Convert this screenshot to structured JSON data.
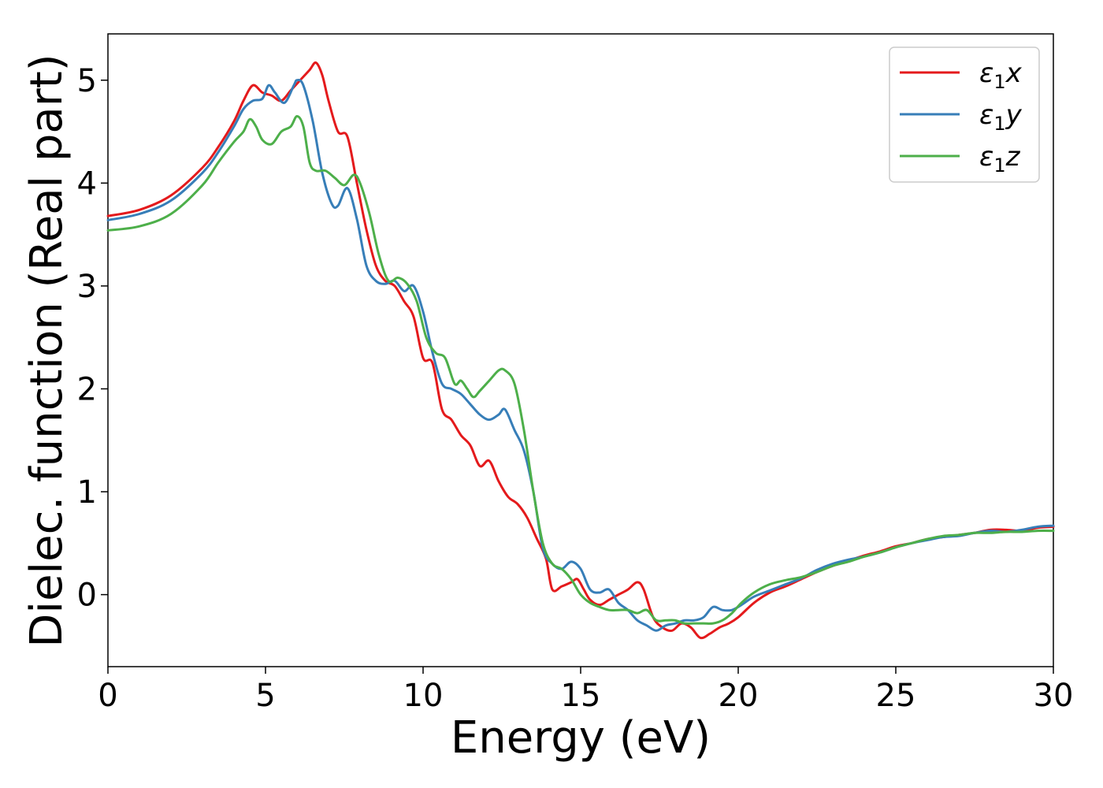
{
  "chart_data": {
    "type": "line",
    "title": "",
    "xlabel": "Energy (eV)",
    "ylabel": "Dielec. function (Real part)",
    "xlim": [
      0,
      30
    ],
    "ylim": [
      -0.7,
      5.45
    ],
    "xticks": [
      0,
      5,
      10,
      15,
      20,
      25,
      30
    ],
    "yticks": [
      0,
      1,
      2,
      3,
      4,
      5
    ],
    "grid": false,
    "legend_position": "top-right",
    "series": [
      {
        "name": "ε1x",
        "legend_base": "ε",
        "legend_sub": "1",
        "legend_var": "x",
        "color": "#e41a1c",
        "x": [
          0,
          1,
          2,
          3,
          3.5,
          4,
          4.3,
          4.6,
          4.9,
          5.2,
          5.5,
          5.8,
          6.1,
          6.4,
          6.6,
          6.8,
          7.0,
          7.3,
          7.6,
          7.9,
          8.2,
          8.5,
          8.8,
          9.1,
          9.4,
          9.7,
          10.0,
          10.3,
          10.6,
          10.9,
          11.2,
          11.5,
          11.8,
          12.1,
          12.4,
          12.7,
          13.0,
          13.3,
          13.6,
          13.9,
          14.1,
          14.4,
          14.7,
          14.9,
          15.1,
          15.3,
          15.6,
          15.9,
          16.2,
          16.5,
          16.8,
          17.0,
          17.3,
          17.6,
          17.9,
          18.2,
          18.5,
          18.8,
          19.1,
          19.4,
          19.7,
          20.0,
          20.5,
          21,
          21.5,
          22,
          22.5,
          23,
          23.5,
          24,
          24.5,
          25,
          25.5,
          26,
          26.5,
          27,
          27.5,
          28,
          28.5,
          29,
          29.5,
          30
        ],
        "y": [
          3.68,
          3.74,
          3.88,
          4.15,
          4.35,
          4.6,
          4.8,
          4.95,
          4.88,
          4.85,
          4.8,
          4.9,
          5.0,
          5.1,
          5.17,
          5.05,
          4.8,
          4.5,
          4.45,
          4.0,
          3.55,
          3.2,
          3.05,
          3.0,
          2.85,
          2.7,
          2.3,
          2.25,
          1.8,
          1.7,
          1.55,
          1.45,
          1.25,
          1.3,
          1.1,
          0.95,
          0.88,
          0.75,
          0.55,
          0.35,
          0.05,
          0.08,
          0.12,
          0.15,
          0.05,
          -0.05,
          -0.1,
          -0.05,
          0.0,
          0.05,
          0.12,
          0.05,
          -0.22,
          -0.32,
          -0.35,
          -0.28,
          -0.32,
          -0.42,
          -0.38,
          -0.32,
          -0.28,
          -0.22,
          -0.08,
          0.02,
          0.08,
          0.15,
          0.22,
          0.28,
          0.33,
          0.38,
          0.42,
          0.47,
          0.5,
          0.54,
          0.56,
          0.58,
          0.6,
          0.63,
          0.63,
          0.62,
          0.65,
          0.66
        ]
      },
      {
        "name": "ε1y",
        "legend_base": "ε",
        "legend_sub": "1",
        "legend_var": "y",
        "color": "#377eb8",
        "x": [
          0,
          1,
          2,
          3,
          3.5,
          4,
          4.3,
          4.6,
          4.9,
          5.1,
          5.3,
          5.6,
          5.9,
          6.0,
          6.2,
          6.5,
          6.8,
          7.1,
          7.3,
          7.6,
          7.9,
          8.2,
          8.5,
          8.8,
          9.1,
          9.4,
          9.7,
          10.0,
          10.3,
          10.6,
          10.9,
          11.2,
          11.5,
          11.8,
          12.1,
          12.4,
          12.6,
          12.9,
          13.2,
          13.5,
          13.8,
          14.1,
          14.4,
          14.7,
          15.0,
          15.3,
          15.6,
          15.9,
          16.2,
          16.5,
          16.8,
          17.1,
          17.4,
          17.7,
          18.0,
          18.3,
          18.6,
          18.9,
          19.2,
          19.5,
          19.8,
          20.1,
          20.5,
          21,
          21.5,
          22,
          22.5,
          23,
          23.5,
          24,
          24.5,
          25,
          25.5,
          26,
          26.5,
          27,
          27.5,
          28,
          28.5,
          29,
          29.5,
          30
        ],
        "y": [
          3.64,
          3.7,
          3.83,
          4.1,
          4.3,
          4.55,
          4.72,
          4.8,
          4.82,
          4.95,
          4.88,
          4.78,
          4.95,
          5.0,
          4.95,
          4.6,
          4.1,
          3.8,
          3.78,
          3.95,
          3.65,
          3.2,
          3.05,
          3.02,
          3.05,
          2.95,
          3.0,
          2.75,
          2.35,
          2.05,
          2.0,
          1.95,
          1.85,
          1.75,
          1.7,
          1.75,
          1.8,
          1.6,
          1.4,
          1.0,
          0.45,
          0.3,
          0.25,
          0.32,
          0.25,
          0.05,
          0.02,
          0.05,
          -0.08,
          -0.15,
          -0.25,
          -0.3,
          -0.35,
          -0.3,
          -0.28,
          -0.25,
          -0.25,
          -0.22,
          -0.12,
          -0.15,
          -0.15,
          -0.1,
          -0.02,
          0.04,
          0.1,
          0.16,
          0.24,
          0.3,
          0.34,
          0.37,
          0.41,
          0.46,
          0.5,
          0.53,
          0.56,
          0.57,
          0.6,
          0.62,
          0.61,
          0.63,
          0.66,
          0.67
        ]
      },
      {
        "name": "ε1z",
        "legend_base": "ε",
        "legend_sub": "1",
        "legend_var": "z",
        "color": "#4daf4a",
        "x": [
          0,
          1,
          2,
          3,
          3.5,
          4,
          4.3,
          4.5,
          4.7,
          4.9,
          5.2,
          5.5,
          5.8,
          6.0,
          6.2,
          6.4,
          6.6,
          6.9,
          7.2,
          7.5,
          7.8,
          8.0,
          8.3,
          8.6,
          8.9,
          9.2,
          9.5,
          9.8,
          10.1,
          10.4,
          10.7,
          11.0,
          11.2,
          11.4,
          11.6,
          11.8,
          12.1,
          12.4,
          12.6,
          12.9,
          13.2,
          13.5,
          13.8,
          14.1,
          14.4,
          14.7,
          15.0,
          15.3,
          15.6,
          15.9,
          16.2,
          16.5,
          16.8,
          17.1,
          17.4,
          17.7,
          18.0,
          18.3,
          18.6,
          18.9,
          19.2,
          19.5,
          19.8,
          20.1,
          20.5,
          21,
          21.5,
          22,
          22.5,
          23,
          23.5,
          24,
          24.5,
          25,
          25.5,
          26,
          26.5,
          27,
          27.5,
          28,
          28.5,
          29,
          29.5,
          30
        ],
        "y": [
          3.54,
          3.58,
          3.7,
          3.98,
          4.2,
          4.4,
          4.5,
          4.62,
          4.55,
          4.42,
          4.38,
          4.5,
          4.55,
          4.65,
          4.55,
          4.2,
          4.12,
          4.12,
          4.05,
          3.98,
          4.08,
          4.0,
          3.7,
          3.3,
          3.05,
          3.08,
          3.02,
          2.85,
          2.5,
          2.35,
          2.3,
          2.05,
          2.08,
          2.0,
          1.92,
          1.98,
          2.08,
          2.18,
          2.18,
          2.05,
          1.6,
          1.0,
          0.5,
          0.3,
          0.25,
          0.15,
          0.0,
          -0.08,
          -0.12,
          -0.15,
          -0.15,
          -0.15,
          -0.18,
          -0.15,
          -0.25,
          -0.25,
          -0.25,
          -0.28,
          -0.28,
          -0.28,
          -0.28,
          -0.25,
          -0.18,
          -0.08,
          0.02,
          0.1,
          0.14,
          0.17,
          0.22,
          0.28,
          0.32,
          0.37,
          0.41,
          0.46,
          0.5,
          0.54,
          0.57,
          0.58,
          0.6,
          0.6,
          0.61,
          0.61,
          0.62,
          0.62
        ]
      }
    ]
  }
}
